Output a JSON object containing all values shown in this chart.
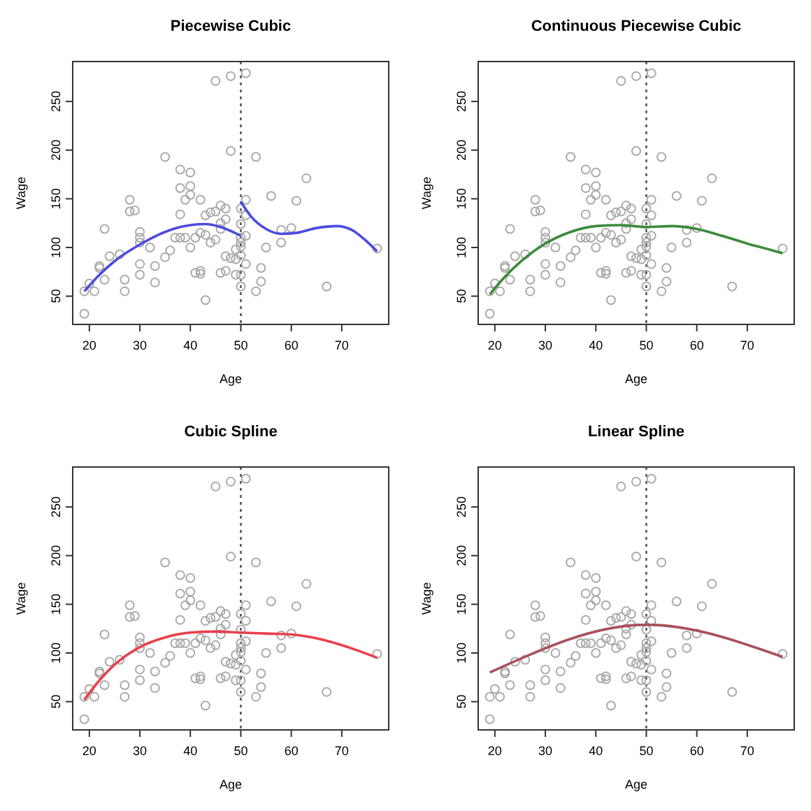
{
  "chart_data": [
    {
      "type": "scatter",
      "title": "Piecewise Cubic",
      "xlabel": "Age",
      "ylabel": "Wage",
      "xlim": [
        16.7,
        79.3
      ],
      "ylim": [
        21,
        291
      ],
      "xticks": [
        20,
        30,
        40,
        50,
        60,
        70
      ],
      "yticks": [
        50,
        100,
        150,
        200,
        250
      ],
      "ref_lines": [
        {
          "axis": "x",
          "value": 50,
          "color": "#555555",
          "line_style": "dotted"
        }
      ],
      "series": [
        {
          "marker": "circle",
          "color": "#aaaaaa",
          "x": [
            19,
            19,
            20,
            21,
            22,
            22,
            23,
            23,
            24,
            26,
            27,
            27,
            28,
            28,
            29,
            30,
            30,
            30,
            30,
            30,
            32,
            33,
            33,
            35,
            35,
            36,
            37,
            38,
            38,
            38,
            38,
            39,
            39,
            40,
            40,
            40,
            40,
            41,
            41,
            42,
            42,
            42,
            42,
            43,
            43,
            43,
            44,
            44,
            45,
            45,
            45,
            46,
            46,
            46,
            46,
            47,
            47,
            47,
            47,
            48,
            48,
            48,
            49,
            49,
            49,
            50,
            50,
            50,
            50,
            50,
            50,
            50,
            50,
            51,
            51,
            51,
            51,
            51,
            53,
            53,
            54,
            54,
            55,
            56,
            58,
            58,
            60,
            61,
            63,
            67,
            77
          ],
          "values": [
            55,
            32,
            63,
            55,
            81,
            79,
            119,
            67,
            91,
            93,
            67,
            55,
            149,
            137,
            138,
            116,
            110,
            105,
            83,
            72,
            100,
            81,
            64,
            193,
            90,
            97,
            110,
            180,
            161,
            134,
            110,
            149,
            110,
            177,
            163,
            154,
            100,
            110,
            74,
            149,
            76,
            73,
            115,
            133,
            113,
            46,
            136,
            105,
            271,
            137,
            108,
            143,
            125,
            119,
            74,
            140,
            129,
            91,
            76,
            276,
            199,
            89,
            98,
            72,
            88,
            140,
            124,
            110,
            105,
            101,
            92,
            72,
            60,
            279,
            149,
            133,
            112,
            83,
            193,
            55,
            79,
            65,
            100,
            153,
            118,
            105,
            120,
            148,
            171,
            60,
            99
          ]
        },
        {
          "type": "line",
          "color": "#4b4be0",
          "x": [
            19,
            22,
            25,
            30,
            35,
            40,
            43,
            46,
            50
          ],
          "values": [
            55,
            72,
            86,
            103,
            116,
            123,
            124,
            121,
            112
          ]
        },
        {
          "type": "line",
          "color": "#4b4be0",
          "x": [
            50,
            52,
            55,
            58,
            61,
            65,
            69,
            72,
            75,
            77
          ],
          "values": [
            147,
            132,
            119,
            114,
            115,
            120,
            122,
            118,
            106,
            96
          ]
        }
      ]
    },
    {
      "type": "scatter",
      "title": "Continuous Piecewise Cubic",
      "xlabel": "Age",
      "ylabel": "Wage",
      "xlim": [
        16.7,
        79.3
      ],
      "ylim": [
        21,
        291
      ],
      "xticks": [
        20,
        30,
        40,
        50,
        60,
        70
      ],
      "yticks": [
        50,
        100,
        150,
        200,
        250
      ],
      "ref_lines": [
        {
          "axis": "x",
          "value": 50,
          "color": "#555555",
          "line_style": "dotted"
        }
      ],
      "series": [
        {
          "marker": "circle",
          "color": "#aaaaaa",
          "x": [
            19,
            19,
            20,
            21,
            22,
            22,
            23,
            23,
            24,
            26,
            27,
            27,
            28,
            28,
            29,
            30,
            30,
            30,
            30,
            30,
            32,
            33,
            33,
            35,
            35,
            36,
            37,
            38,
            38,
            38,
            38,
            39,
            39,
            40,
            40,
            40,
            40,
            41,
            41,
            42,
            42,
            42,
            42,
            43,
            43,
            43,
            44,
            44,
            45,
            45,
            45,
            46,
            46,
            46,
            46,
            47,
            47,
            47,
            47,
            48,
            48,
            48,
            49,
            49,
            49,
            50,
            50,
            50,
            50,
            50,
            50,
            50,
            50,
            51,
            51,
            51,
            51,
            51,
            53,
            53,
            54,
            54,
            55,
            56,
            58,
            58,
            60,
            61,
            63,
            67,
            77
          ],
          "values": [
            55,
            32,
            63,
            55,
            81,
            79,
            119,
            67,
            91,
            93,
            67,
            55,
            149,
            137,
            138,
            116,
            110,
            105,
            83,
            72,
            100,
            81,
            64,
            193,
            90,
            97,
            110,
            180,
            161,
            134,
            110,
            149,
            110,
            177,
            163,
            154,
            100,
            110,
            74,
            149,
            76,
            73,
            115,
            133,
            113,
            46,
            136,
            105,
            271,
            137,
            108,
            143,
            125,
            119,
            74,
            140,
            129,
            91,
            76,
            276,
            199,
            89,
            98,
            72,
            88,
            140,
            124,
            110,
            105,
            101,
            92,
            72,
            60,
            279,
            149,
            133,
            112,
            83,
            193,
            55,
            79,
            65,
            100,
            153,
            118,
            105,
            120,
            148,
            171,
            60,
            99
          ]
        },
        {
          "type": "line",
          "color": "#3d8a3d",
          "x": [
            19,
            22,
            25,
            30,
            35,
            40,
            45,
            50,
            55,
            60,
            65,
            70,
            75,
            77
          ],
          "values": [
            52,
            70,
            85,
            104,
            116,
            122,
            123,
            121,
            122,
            119,
            112,
            104,
            97,
            94
          ]
        }
      ]
    },
    {
      "type": "scatter",
      "title": "Cubic Spline",
      "xlabel": "Age",
      "ylabel": "Wage",
      "xlim": [
        16.7,
        79.3
      ],
      "ylim": [
        21,
        291
      ],
      "xticks": [
        20,
        30,
        40,
        50,
        60,
        70
      ],
      "yticks": [
        50,
        100,
        150,
        200,
        250
      ],
      "ref_lines": [
        {
          "axis": "x",
          "value": 50,
          "color": "#555555",
          "line_style": "dotted"
        }
      ],
      "series": [
        {
          "marker": "circle",
          "color": "#aaaaaa",
          "x": [
            19,
            19,
            20,
            21,
            22,
            22,
            23,
            23,
            24,
            26,
            27,
            27,
            28,
            28,
            29,
            30,
            30,
            30,
            30,
            30,
            32,
            33,
            33,
            35,
            35,
            36,
            37,
            38,
            38,
            38,
            38,
            39,
            39,
            40,
            40,
            40,
            40,
            41,
            41,
            42,
            42,
            42,
            42,
            43,
            43,
            43,
            44,
            44,
            45,
            45,
            45,
            46,
            46,
            46,
            46,
            47,
            47,
            47,
            47,
            48,
            48,
            48,
            49,
            49,
            49,
            50,
            50,
            50,
            50,
            50,
            50,
            50,
            50,
            51,
            51,
            51,
            51,
            51,
            53,
            53,
            54,
            54,
            55,
            56,
            58,
            58,
            60,
            61,
            63,
            67,
            77
          ],
          "values": [
            55,
            32,
            63,
            55,
            81,
            79,
            119,
            67,
            91,
            93,
            67,
            55,
            149,
            137,
            138,
            116,
            110,
            105,
            83,
            72,
            100,
            81,
            64,
            193,
            90,
            97,
            110,
            180,
            161,
            134,
            110,
            149,
            110,
            177,
            163,
            154,
            100,
            110,
            74,
            149,
            76,
            73,
            115,
            133,
            113,
            46,
            136,
            105,
            271,
            137,
            108,
            143,
            125,
            119,
            74,
            140,
            129,
            91,
            76,
            276,
            199,
            89,
            98,
            72,
            88,
            140,
            124,
            110,
            105,
            101,
            92,
            72,
            60,
            279,
            149,
            133,
            112,
            83,
            193,
            55,
            79,
            65,
            100,
            153,
            118,
            105,
            120,
            148,
            171,
            60,
            99
          ]
        },
        {
          "type": "line",
          "color": "#e8404c",
          "x": [
            19,
            22,
            25,
            30,
            35,
            40,
            45,
            50,
            55,
            60,
            65,
            70,
            75,
            77
          ],
          "values": [
            52,
            72,
            88,
            106,
            116,
            121,
            122,
            121,
            120,
            119,
            115,
            108,
            99,
            95
          ]
        }
      ]
    },
    {
      "type": "scatter",
      "title": "Linear Spline",
      "xlabel": "Age",
      "ylabel": "Wage",
      "xlim": [
        16.7,
        79.3
      ],
      "ylim": [
        21,
        291
      ],
      "xticks": [
        20,
        30,
        40,
        50,
        60,
        70
      ],
      "yticks": [
        50,
        100,
        150,
        200,
        250
      ],
      "ref_lines": [
        {
          "axis": "x",
          "value": 50,
          "color": "#555555",
          "line_style": "dotted"
        }
      ],
      "series": [
        {
          "marker": "circle",
          "color": "#aaaaaa",
          "x": [
            19,
            19,
            20,
            21,
            22,
            22,
            23,
            23,
            24,
            26,
            27,
            27,
            28,
            28,
            29,
            30,
            30,
            30,
            30,
            30,
            32,
            33,
            33,
            35,
            35,
            36,
            37,
            38,
            38,
            38,
            38,
            39,
            39,
            40,
            40,
            40,
            40,
            41,
            41,
            42,
            42,
            42,
            42,
            43,
            43,
            43,
            44,
            44,
            45,
            45,
            45,
            46,
            46,
            46,
            46,
            47,
            47,
            47,
            47,
            48,
            48,
            48,
            49,
            49,
            49,
            50,
            50,
            50,
            50,
            50,
            50,
            50,
            50,
            51,
            51,
            51,
            51,
            51,
            53,
            53,
            54,
            54,
            55,
            56,
            58,
            58,
            60,
            61,
            63,
            67,
            77
          ],
          "values": [
            55,
            32,
            63,
            55,
            81,
            79,
            119,
            67,
            91,
            93,
            67,
            55,
            149,
            137,
            138,
            116,
            110,
            105,
            83,
            72,
            100,
            81,
            64,
            193,
            90,
            97,
            110,
            180,
            161,
            134,
            110,
            149,
            110,
            177,
            163,
            154,
            100,
            110,
            74,
            149,
            76,
            73,
            115,
            133,
            113,
            46,
            136,
            105,
            271,
            137,
            108,
            143,
            125,
            119,
            74,
            140,
            129,
            91,
            76,
            276,
            199,
            89,
            98,
            72,
            88,
            140,
            124,
            110,
            105,
            101,
            92,
            72,
            60,
            279,
            149,
            133,
            112,
            83,
            193,
            55,
            79,
            65,
            100,
            153,
            118,
            105,
            120,
            148,
            171,
            60,
            99
          ]
        },
        {
          "type": "line",
          "color": "#a8505c",
          "x": [
            19,
            50,
            77
          ],
          "values": [
            80,
            129,
            96
          ]
        }
      ]
    }
  ]
}
